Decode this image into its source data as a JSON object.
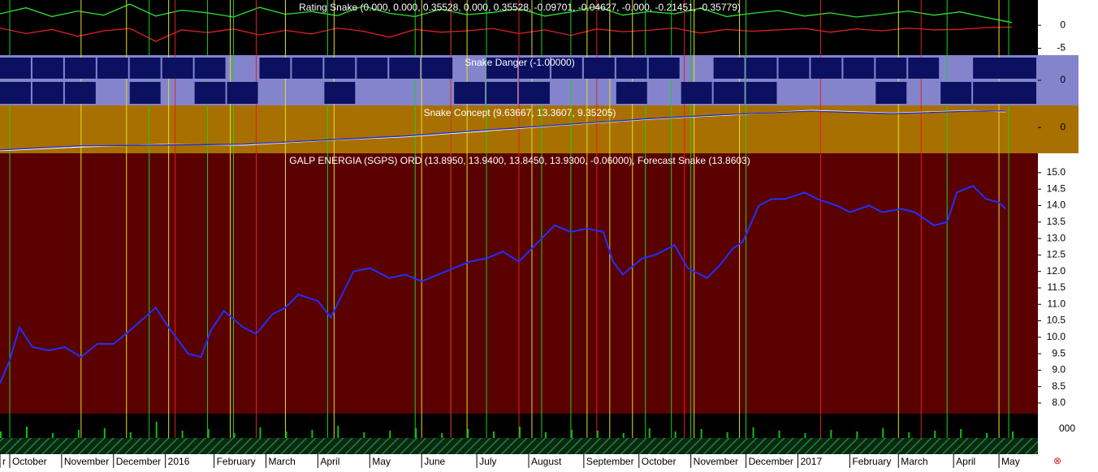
{
  "chart_data": [
    {
      "type": "line",
      "title": "Rating Snake (0.000, 0.000, 0.35528, 0.000, 0.35528, -0.09701, -0.04627, -0.000, -0.21451, -0.35779)",
      "background": "#000000",
      "ylim": [
        -6.5,
        5.5
      ],
      "yticks": [
        0,
        -5
      ],
      "x": [
        0,
        4,
        8,
        12,
        16,
        20,
        24,
        28,
        32,
        36,
        40,
        44,
        48,
        52,
        56,
        60,
        64,
        68,
        72,
        76,
        80,
        84,
        88,
        92,
        96,
        100,
        104,
        108,
        112,
        116,
        120,
        124,
        128,
        132,
        136,
        140,
        144,
        148,
        152,
        156
      ],
      "series": [
        {
          "color": "#30e030",
          "values": [
            2.5,
            3.8,
            1.9,
            3.1,
            2.2,
            4.6,
            2.0,
            3.3,
            2.7,
            1.8,
            3.9,
            2.4,
            3.0,
            2.1,
            4.2,
            2.6,
            1.9,
            3.5,
            2.3,
            2.8,
            3.6,
            2.0,
            2.9,
            4.1,
            2.2,
            3.0,
            2.5,
            3.7,
            1.9,
            2.6,
            3.2,
            2.0,
            2.7,
            1.8,
            2.4,
            3.1,
            2.2,
            2.9,
            1.7,
            0.6
          ]
        },
        {
          "color": "#e02020",
          "values": [
            -0.6,
            -1.8,
            -0.9,
            -2.4,
            -1.2,
            -0.7,
            -3.5,
            -1.0,
            -1.6,
            -0.8,
            -2.1,
            -1.1,
            -1.9,
            -0.6,
            -1.3,
            -2.6,
            -0.9,
            -1.5,
            -1.2,
            -0.7,
            -1.8,
            -1.0,
            -2.2,
            -0.8,
            -1.4,
            -1.1,
            -0.6,
            -1.7,
            -0.9,
            -1.3,
            -1.0,
            -0.7,
            -1.5,
            -0.8,
            -1.2,
            -0.6,
            -1.0,
            -0.9,
            -0.5,
            -0.4
          ]
        }
      ]
    },
    {
      "type": "band",
      "title": "Snake Danger (-1.00000)",
      "background": "#8484cc",
      "color": "#0c1060",
      "ylim": [
        -1,
        1
      ],
      "yticks": [
        0
      ],
      "x": [
        0,
        5,
        10,
        15,
        20,
        25,
        30,
        35,
        40,
        45,
        50,
        55,
        60,
        65,
        70,
        75,
        80,
        85,
        90,
        95,
        100,
        105,
        110,
        115,
        120,
        125,
        130,
        135,
        140,
        145,
        150
      ],
      "values": [
        0,
        0,
        0,
        1,
        0,
        1,
        0,
        -1,
        1,
        1,
        0,
        1,
        1,
        1,
        -1,
        0,
        0,
        1,
        1,
        0,
        1,
        -1,
        0,
        0,
        1,
        1,
        1,
        0,
        1,
        -1,
        0
      ]
    },
    {
      "type": "line",
      "title": "Snake Concept (9.63667, 13.3607, 9.35205)",
      "background": "#a87000",
      "ylim": [
        -1.4,
        1.2
      ],
      "yticks": [
        0
      ],
      "x": [
        0,
        12.5,
        25,
        37.5,
        50,
        62.5,
        75,
        87.5,
        100,
        112.5,
        125,
        137.5,
        150,
        155
      ],
      "series": [
        {
          "color": "#ffffff",
          "values": [
            -1.25,
            -1.05,
            -0.92,
            -0.95,
            -0.7,
            -0.5,
            -0.18,
            0.15,
            0.45,
            0.68,
            0.93,
            0.78,
            0.92,
            0.85
          ]
        },
        {
          "color": "#1a2ad0",
          "values": [
            -1.22,
            -1.0,
            -0.95,
            -0.91,
            -0.68,
            -0.46,
            -0.14,
            0.17,
            0.48,
            0.71,
            0.89,
            0.75,
            0.89,
            0.89
          ]
        }
      ]
    },
    {
      "type": "line",
      "title": "GALP ENERGIA (SGPS) ORD (13.8950, 13.9400, 13.8450, 13.9300, -0.06000), Forecast Snake (13.8603)",
      "background": "#5a0000",
      "ylim": [
        7.68,
        15.59
      ],
      "yticks": [
        {
          "value": 8,
          "label": "8.0"
        },
        8.5,
        {
          "value": 9,
          "label": "9.0"
        },
        9.5,
        {
          "value": 10,
          "label": "10.0"
        },
        10.5,
        {
          "value": 11,
          "label": "11.0"
        },
        11.5,
        {
          "value": 12,
          "label": "12.0"
        },
        12.5,
        {
          "value": 13,
          "label": "13.0"
        },
        13.5,
        {
          "value": 14,
          "label": "14.0"
        },
        14.5,
        {
          "value": 15,
          "label": "15.0"
        }
      ],
      "xlim": [
        0,
        160
      ],
      "xticks": [
        {
          "value": 0,
          "label": "r"
        },
        {
          "value": 1.5,
          "label": "October"
        },
        {
          "value": 9.5,
          "label": "November"
        },
        {
          "value": 17.5,
          "label": "December"
        },
        {
          "value": 25.5,
          "label": "2016"
        },
        {
          "value": 33,
          "label": "February"
        },
        {
          "value": 41,
          "label": "March"
        },
        {
          "value": 49,
          "label": "April"
        },
        {
          "value": 57,
          "label": "May"
        },
        {
          "value": 65,
          "label": "June"
        },
        {
          "value": 73.5,
          "label": "July"
        },
        {
          "value": 81.5,
          "label": "August"
        },
        {
          "value": 90,
          "label": "September"
        },
        {
          "value": 98.5,
          "label": "October"
        },
        {
          "value": 106.5,
          "label": "November"
        },
        {
          "value": 115,
          "label": "December"
        },
        {
          "value": 123,
          "label": "2017"
        },
        {
          "value": 131,
          "label": "February"
        },
        {
          "value": 138.5,
          "label": "March"
        },
        {
          "value": 147,
          "label": "April"
        },
        {
          "value": 154,
          "label": "May"
        }
      ],
      "x": [
        0,
        1.5,
        3,
        5,
        7.5,
        10,
        12.5,
        15,
        17.5,
        20,
        24,
        26,
        29,
        31,
        32.5,
        34.5,
        37.5,
        39.5,
        42,
        44,
        46,
        49,
        51,
        52.5,
        54.5,
        57,
        60,
        62.5,
        65,
        67.5,
        70,
        72.5,
        75,
        77.5,
        80,
        82.5,
        85.5,
        88,
        90.5,
        93,
        94.5,
        96,
        99,
        101,
        104,
        106,
        109,
        111,
        113,
        114.5,
        117,
        119,
        121,
        124,
        126,
        129,
        131,
        134,
        136,
        139,
        141,
        144,
        146,
        147.5,
        150,
        152,
        154,
        155
      ],
      "series": [
        {
          "color": "#2030ff",
          "values": [
            8.6,
            9.3,
            10.3,
            9.7,
            9.6,
            9.7,
            9.4,
            9.8,
            9.8,
            10.2,
            10.9,
            10.3,
            9.5,
            9.4,
            10.2,
            10.8,
            10.3,
            10.1,
            10.7,
            10.9,
            11.3,
            11.1,
            10.6,
            11.2,
            12.0,
            12.1,
            11.8,
            11.9,
            11.7,
            11.9,
            12.1,
            12.3,
            12.4,
            12.6,
            12.3,
            12.8,
            13.4,
            13.2,
            13.3,
            13.2,
            12.3,
            11.9,
            12.4,
            12.5,
            12.8,
            12.1,
            11.8,
            12.2,
            12.7,
            12.9,
            14.0,
            14.2,
            14.2,
            14.4,
            14.2,
            14.0,
            13.8,
            14.0,
            13.8,
            13.9,
            13.8,
            13.4,
            13.5,
            14.4,
            14.6,
            14.2,
            14.1,
            13.9
          ]
        }
      ],
      "signal_lines": [
        {
          "color": "#20d020",
          "x": [
            1.5,
            23,
            32,
            36,
            50.5,
            64,
            69.5,
            75,
            83.5,
            88,
            99.5,
            103.5,
            106.5,
            115,
            146,
            155.5
          ]
        },
        {
          "color": "#e02020",
          "x": [
            27,
            39.5,
            69.5,
            80,
            92,
            105.5,
            126.5,
            142,
            154
          ]
        },
        {
          "color": "#e0e020",
          "x": [
            12.5,
            19.5,
            26,
            35.5,
            44,
            51.5,
            65,
            72,
            82,
            90.5,
            94,
            97.5,
            107,
            114,
            138.5,
            154
          ]
        }
      ]
    },
    {
      "type": "bar",
      "background": "#000000",
      "color": "#10c010",
      "y_axis_label": "000",
      "ylim": [
        0,
        30
      ],
      "x": [
        0,
        4,
        8,
        12,
        16,
        20,
        24,
        28,
        32,
        36,
        40,
        44,
        48,
        52,
        56,
        60,
        64,
        68,
        72,
        76,
        80,
        84,
        88,
        92,
        96,
        100,
        104,
        108,
        112,
        116,
        120,
        124,
        128,
        132,
        136,
        140,
        144,
        148,
        152,
        156
      ],
      "values": [
        8,
        14,
        6,
        10,
        12,
        7,
        20,
        9,
        11,
        6,
        13,
        8,
        10,
        15,
        7,
        9,
        12,
        6,
        11,
        8,
        14,
        7,
        10,
        9,
        6,
        12,
        8,
        11,
        7,
        13,
        9,
        6,
        10,
        8,
        12,
        7,
        9,
        11,
        6,
        8
      ]
    }
  ]
}
